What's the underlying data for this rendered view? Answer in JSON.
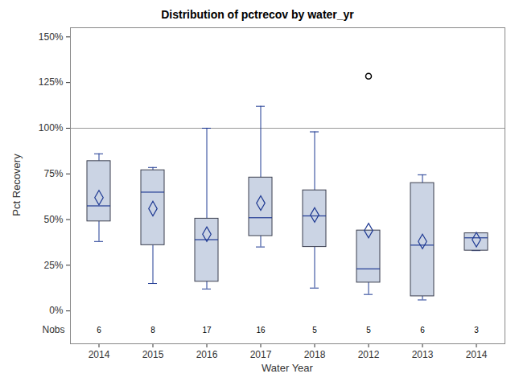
{
  "chart_data": {
    "type": "box",
    "title": "Distribution of pctrecov by water_yr",
    "x_label": "Water Year",
    "y_label": "Pct Recovery",
    "categories": [
      "2014",
      "2015",
      "2016",
      "2017",
      "2018",
      "2012",
      "2013",
      "2014"
    ],
    "min": [
      38,
      15,
      12,
      35,
      12.5,
      9,
      6,
      33
    ],
    "q1": [
      49,
      36,
      16,
      41,
      35,
      15.5,
      8,
      33
    ],
    "median": [
      57.5,
      65,
      39,
      51,
      52,
      23,
      36,
      40
    ],
    "q3": [
      82,
      77,
      50.5,
      73,
      66,
      44,
      70,
      42.5
    ],
    "max": [
      86,
      78.5,
      100,
      112,
      98,
      44,
      74.5,
      42.5
    ],
    "mean": [
      62,
      56,
      42,
      59,
      52.5,
      44,
      38,
      39
    ],
    "outliers": [
      [],
      [],
      [],
      [],
      [],
      [
        128.5
      ],
      [],
      []
    ],
    "nobs": [
      6,
      8,
      17,
      16,
      5,
      5,
      6,
      3
    ],
    "nobs_label": "Nobs",
    "reference_line": 100,
    "color": "#cbd4e4",
    "ylim": [
      -18,
      155
    ],
    "yticks": [
      {
        "value": 0,
        "label": "0%"
      },
      {
        "value": 25,
        "label": "25%"
      },
      {
        "value": 50,
        "label": "50%"
      },
      {
        "value": 75,
        "label": "75%"
      },
      {
        "value": 100,
        "label": "100%"
      },
      {
        "value": 125,
        "label": "125%"
      },
      {
        "value": 150,
        "label": "150%"
      }
    ],
    "grid": false
  }
}
